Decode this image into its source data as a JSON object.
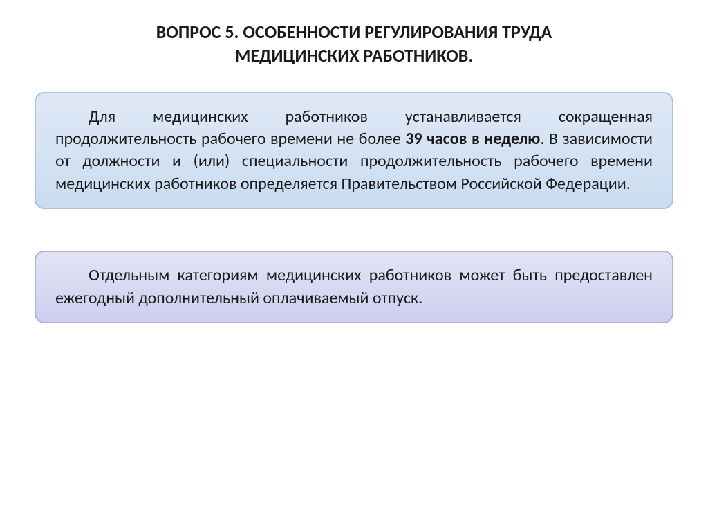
{
  "title": {
    "line1": "ВОПРОС 5. ОСОБЕННОСТИ РЕГУЛИРОВАНИЯ ТРУДА",
    "line2": "МЕДИЦИНСКИХ РАБОТНИКОВ.",
    "fontsize": 26,
    "color": "#1a1a1a"
  },
  "box1": {
    "text_before_bold": "Для медицинских работников устанавливается сокращенная продолжительность рабочего времени не более ",
    "bold_text": "39 часов в неделю",
    "text_after_bold": ". В зависимости от должности и (или) специальности продолжительность рабочего времени медицинских работников определяется Правительством Российской Федерации.",
    "fontsize": 24,
    "background_gradient_top": "#dfe9f5",
    "background_gradient_bottom": "#cbdcf0",
    "border_color": "#a9c3e0",
    "border_radius": 14
  },
  "box2": {
    "text": "Отдельным категориям медицинских работников может быть предоставлен ежегодный дополнительный оплачиваемый отпуск.",
    "fontsize": 24,
    "background_gradient_top": "#e3e3f5",
    "background_gradient_bottom": "#cecef0",
    "border_color": "#b0b0dd",
    "border_radius": 14
  },
  "layout": {
    "page_background": "#ffffff",
    "box_spacing": 60
  }
}
